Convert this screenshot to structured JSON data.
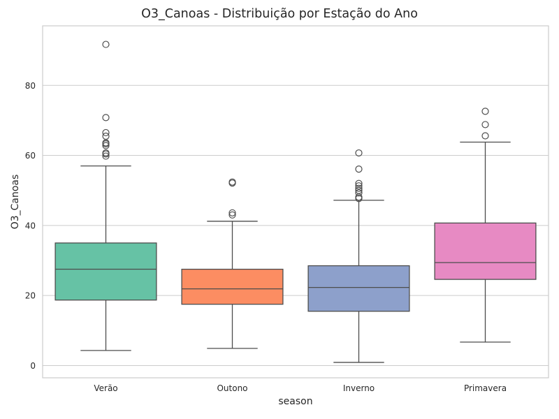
{
  "chart_data": {
    "type": "box",
    "title": "O3_Canoas - Distribuição por Estação do Ano",
    "xlabel": "season",
    "ylabel": "O3_Canoas",
    "ylim": [
      -3.5,
      97
    ],
    "yticks": [
      "0",
      "20",
      "40",
      "60",
      "80"
    ],
    "grid": true,
    "categories": [
      "Verão",
      "Outono",
      "Inverno",
      "Primavera"
    ],
    "colors": [
      "#66c2a5",
      "#fc8d62",
      "#8da0cb",
      "#e78ac3"
    ],
    "boxes": [
      {
        "whisker_low": 4.3,
        "q1": 18.7,
        "median": 27.5,
        "q3": 35.0,
        "whisker_high": 57.0,
        "outliers": [
          59.8,
          60.4,
          60.7,
          62.8,
          63.3,
          63.6,
          65.5,
          66.5,
          70.8,
          91.7
        ]
      },
      {
        "whisker_low": 4.9,
        "q1": 17.5,
        "median": 21.9,
        "q3": 27.5,
        "whisker_high": 41.2,
        "outliers": [
          43.0,
          43.6,
          52.1,
          52.4
        ]
      },
      {
        "whisker_low": 0.9,
        "q1": 15.5,
        "median": 22.3,
        "q3": 28.5,
        "whisker_high": 47.2,
        "outliers": [
          47.7,
          48.1,
          49.3,
          50.0,
          50.6,
          51.3,
          52.0,
          56.1,
          60.7
        ]
      },
      {
        "whisker_low": 6.7,
        "q1": 24.6,
        "median": 29.4,
        "q3": 40.7,
        "whisker_high": 63.8,
        "outliers": [
          65.6,
          68.8,
          72.6
        ]
      }
    ]
  }
}
